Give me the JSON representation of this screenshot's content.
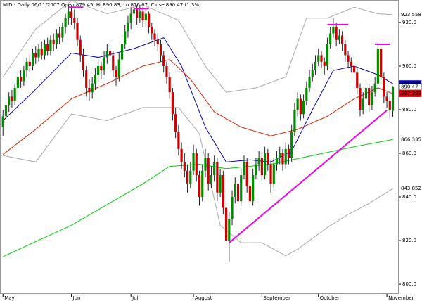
{
  "chart_data": {
    "type": "candlestick",
    "title": "MID - Daily 06/11/2007 Open 879.45, Hi 890.83, Lo 876.67, Close 890.47 (1.3%)",
    "xlim": [
      -1,
      133
    ],
    "ylim": [
      795.5,
      930.3
    ],
    "yticks": [
      {
        "value": 920,
        "label": "920.0"
      },
      {
        "value": 900,
        "label": "900.0"
      },
      {
        "value": 880,
        "label": "880.0"
      },
      {
        "value": 860,
        "label": "860.0"
      },
      {
        "value": 840,
        "label": "840.0"
      },
      {
        "value": 820,
        "label": "820.0"
      },
      {
        "value": 800,
        "label": "800.0"
      }
    ],
    "xticks": [
      {
        "value": 0,
        "label": "May"
      },
      {
        "value": 23,
        "label": "Jun"
      },
      {
        "value": 43,
        "label": "Jul"
      },
      {
        "value": 64,
        "label": "August"
      },
      {
        "value": 87,
        "label": "September"
      },
      {
        "value": 106,
        "label": "October"
      },
      {
        "value": 129,
        "label": "November"
      }
    ],
    "up_color": "#008c00",
    "down_color": "#cc0000",
    "candles": [
      [
        872,
        880,
        868,
        877
      ],
      [
        877,
        884,
        874,
        882
      ],
      [
        882,
        888,
        879,
        886
      ],
      [
        886,
        889,
        881,
        884
      ],
      [
        884,
        892,
        882,
        890
      ],
      [
        890,
        897,
        887,
        895
      ],
      [
        895,
        898,
        890,
        893
      ],
      [
        893,
        900,
        891,
        898
      ],
      [
        898,
        904,
        895,
        902
      ],
      [
        902,
        905,
        897,
        900
      ],
      [
        900,
        908,
        898,
        906
      ],
      [
        906,
        909,
        901,
        904
      ],
      [
        904,
        910,
        902,
        908
      ],
      [
        908,
        911,
        903,
        905
      ],
      [
        905,
        912,
        903,
        910
      ],
      [
        910,
        913,
        905,
        907
      ],
      [
        907,
        914,
        905,
        912
      ],
      [
        912,
        915,
        907,
        910
      ],
      [
        910,
        917,
        908,
        915
      ],
      [
        915,
        918,
        910,
        913
      ],
      [
        913,
        920,
        911,
        918
      ],
      [
        918,
        924,
        915,
        922
      ],
      [
        922,
        928,
        919,
        925
      ],
      [
        925,
        928,
        919,
        922
      ],
      [
        922,
        926,
        917,
        920
      ],
      [
        920,
        922,
        909,
        912
      ],
      [
        912,
        914,
        902,
        905
      ],
      [
        905,
        908,
        895,
        898
      ],
      [
        898,
        900,
        886,
        890
      ],
      [
        890,
        894,
        884,
        888
      ],
      [
        888,
        895,
        885,
        892
      ],
      [
        892,
        899,
        889,
        896
      ],
      [
        896,
        903,
        893,
        900
      ],
      [
        900,
        902,
        894,
        898
      ],
      [
        898,
        907,
        896,
        904
      ],
      [
        904,
        910,
        901,
        907
      ],
      [
        907,
        909,
        902,
        905
      ],
      [
        905,
        907,
        895,
        898
      ],
      [
        898,
        900,
        891,
        895
      ],
      [
        895,
        906,
        893,
        903
      ],
      [
        903,
        913,
        901,
        910
      ],
      [
        910,
        919,
        908,
        916
      ],
      [
        916,
        923,
        913,
        920
      ],
      [
        920,
        927,
        917,
        924
      ],
      [
        924,
        929,
        921,
        926
      ],
      [
        926,
        928,
        919,
        922
      ],
      [
        922,
        928,
        920,
        925
      ],
      [
        925,
        927,
        918,
        921
      ],
      [
        921,
        926,
        918,
        924
      ],
      [
        924,
        925,
        915,
        918
      ],
      [
        918,
        920,
        912,
        915
      ],
      [
        915,
        917,
        909,
        912
      ],
      [
        912,
        915,
        907,
        910
      ],
      [
        910,
        912,
        902,
        905
      ],
      [
        905,
        907,
        897,
        900
      ],
      [
        900,
        902,
        892,
        895
      ],
      [
        895,
        897,
        885,
        888
      ],
      [
        888,
        890,
        875,
        878
      ],
      [
        878,
        881,
        867,
        870
      ],
      [
        870,
        873,
        859,
        862
      ],
      [
        862,
        865,
        853,
        856
      ],
      [
        856,
        860,
        849,
        852
      ],
      [
        852,
        855,
        842,
        846
      ],
      [
        846,
        856,
        844,
        852
      ],
      [
        852,
        864,
        850,
        860
      ],
      [
        860,
        862,
        847,
        850
      ],
      [
        850,
        852,
        836,
        840
      ],
      [
        840,
        855,
        838,
        852
      ],
      [
        852,
        862,
        849,
        858
      ],
      [
        858,
        860,
        843,
        846
      ],
      [
        846,
        854,
        844,
        850
      ],
      [
        850,
        859,
        847,
        856
      ],
      [
        856,
        858,
        838,
        842
      ],
      [
        842,
        853,
        840,
        850
      ],
      [
        850,
        852,
        832,
        835
      ],
      [
        835,
        837,
        818,
        820
      ],
      [
        820,
        833,
        810,
        830
      ],
      [
        830,
        843,
        827,
        840
      ],
      [
        840,
        849,
        837,
        846
      ],
      [
        846,
        848,
        834,
        838
      ],
      [
        838,
        853,
        836,
        850
      ],
      [
        850,
        859,
        848,
        856
      ],
      [
        856,
        858,
        842,
        845
      ],
      [
        845,
        847,
        835,
        838
      ],
      [
        838,
        853,
        836,
        850
      ],
      [
        850,
        858,
        848,
        855
      ],
      [
        855,
        861,
        852,
        858
      ],
      [
        858,
        860,
        847,
        850
      ],
      [
        850,
        863,
        848,
        860
      ],
      [
        860,
        862,
        852,
        855
      ],
      [
        855,
        857,
        842,
        846
      ],
      [
        846,
        858,
        844,
        855
      ],
      [
        855,
        861,
        852,
        858
      ],
      [
        858,
        863,
        855,
        860
      ],
      [
        860,
        862,
        852,
        855
      ],
      [
        855,
        865,
        853,
        862
      ],
      [
        862,
        864,
        855,
        858
      ],
      [
        858,
        873,
        856,
        870
      ],
      [
        870,
        883,
        868,
        880
      ],
      [
        880,
        888,
        877,
        885
      ],
      [
        885,
        887,
        875,
        878
      ],
      [
        878,
        887,
        876,
        884
      ],
      [
        884,
        893,
        882,
        890
      ],
      [
        890,
        898,
        888,
        895
      ],
      [
        895,
        901,
        893,
        898
      ],
      [
        898,
        905,
        896,
        902
      ],
      [
        902,
        908,
        900,
        905
      ],
      [
        905,
        907,
        899,
        902
      ],
      [
        902,
        904,
        896,
        900
      ],
      [
        900,
        913,
        898,
        910
      ],
      [
        910,
        918,
        908,
        915
      ],
      [
        915,
        922,
        913,
        918
      ],
      [
        918,
        920,
        909,
        912
      ],
      [
        912,
        917,
        910,
        914
      ],
      [
        914,
        916,
        907,
        910
      ],
      [
        910,
        912,
        902,
        905
      ],
      [
        905,
        907,
        899,
        902
      ],
      [
        902,
        904,
        897,
        900
      ],
      [
        900,
        902,
        894,
        897
      ],
      [
        897,
        899,
        887,
        890
      ],
      [
        890,
        892,
        877,
        880
      ],
      [
        880,
        888,
        878,
        885
      ],
      [
        885,
        893,
        883,
        890
      ],
      [
        890,
        892,
        879,
        882
      ],
      [
        882,
        891,
        880,
        888
      ],
      [
        888,
        895,
        886,
        892
      ],
      [
        892,
        911,
        890,
        908
      ],
      [
        908,
        910,
        892,
        895
      ],
      [
        895,
        897,
        883,
        886
      ],
      [
        886,
        888,
        881,
        884
      ],
      [
        884,
        886,
        876,
        880
      ],
      [
        879.45,
        890.83,
        876.67,
        890.47
      ]
    ],
    "lines": [
      {
        "color": "#0000cc",
        "x": [
          0,
          10,
          23,
          32,
          44,
          54,
          60,
          68,
          75,
          83,
          90,
          97,
          104,
          111,
          118,
          126,
          131
        ],
        "values": [
          875,
          888,
          906,
          904,
          908,
          913,
          900,
          872,
          856,
          857,
          856,
          861,
          880,
          898,
          900,
          896,
          891.911
        ]
      },
      {
        "color": "#dd2200",
        "x": [
          0,
          11,
          23,
          35,
          47,
          56,
          63,
          71,
          80,
          90,
          99,
          109,
          118,
          126,
          131
        ],
        "values": [
          859.5,
          871,
          885,
          892,
          900,
          903,
          894,
          879,
          872,
          868,
          871,
          877,
          885,
          890,
          887.383
        ]
      },
      {
        "color": "#00cc00",
        "x": [
          0,
          23,
          47,
          56,
          66,
          75,
          90,
          104,
          118,
          131
        ],
        "values": [
          812.6,
          827,
          846,
          854,
          855,
          853,
          855,
          859,
          863,
          866.335
        ]
      },
      {
        "color": "#aaaaaa",
        "x": [
          0,
          11,
          23,
          35,
          47,
          59,
          68,
          75,
          85,
          95,
          102,
          109,
          118,
          126,
          131
        ],
        "values": [
          895,
          917,
          930,
          924,
          928,
          921,
          900,
          888,
          890,
          895,
          922,
          922,
          927,
          924,
          923.558
        ]
      },
      {
        "color": "#aaaaaa",
        "x": [
          0,
          11,
          23,
          35,
          47,
          59,
          66,
          73,
          80,
          87,
          95,
          99,
          109,
          116,
          123,
          131
        ],
        "values": [
          859,
          856,
          878,
          875,
          881,
          881,
          869,
          827,
          819,
          819,
          813,
          816,
          826,
          832,
          837,
          843.852
        ]
      }
    ],
    "trendlines": {
      "color": "#ee00ee",
      "items": [
        {
          "x": [
            76,
            129
          ],
          "y": [
            819,
            879.7
          ]
        },
        {
          "x": [
            22,
            27
          ],
          "y": [
            927,
            927
          ]
        },
        {
          "x": [
            44,
            49
          ],
          "y": [
            926.4,
            926.4
          ]
        },
        {
          "x": [
            109,
            116
          ],
          "y": [
            919,
            919
          ]
        },
        {
          "x": [
            125,
            130
          ],
          "y": [
            910,
            910
          ]
        }
      ]
    },
    "price_labels": [
      {
        "value": 923.558,
        "label": "923.558",
        "color": "#888888",
        "boxed": false
      },
      {
        "value": 891.911,
        "label": "891.911",
        "color": "#0000cc",
        "boxed": true
      },
      {
        "value": 890.47,
        "label": "890.47",
        "color": "#ffffff",
        "boxed": true
      },
      {
        "value": 887.383,
        "label": "887.383",
        "color": "#dd0000",
        "boxed": true
      },
      {
        "value": 866.335,
        "label": "866.335",
        "color": "#00aa00",
        "boxed": false
      },
      {
        "value": 843.852,
        "label": "843.852",
        "color": "#888888",
        "boxed": false
      }
    ]
  }
}
